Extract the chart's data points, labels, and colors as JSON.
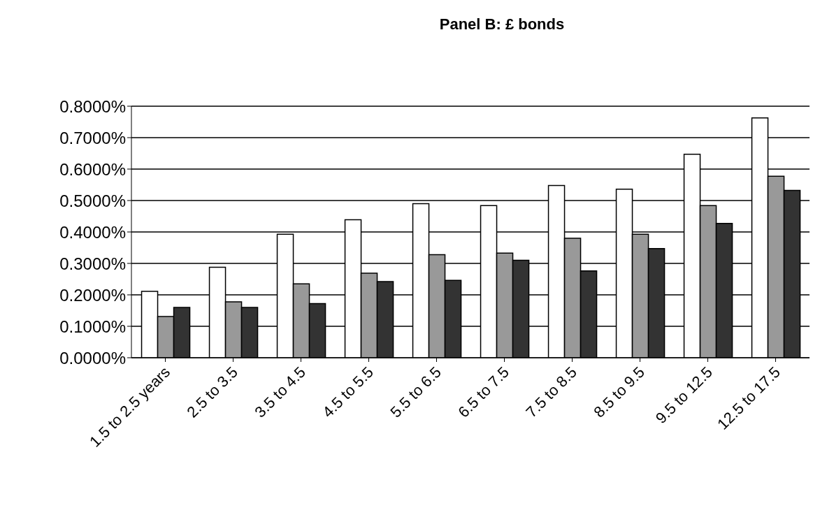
{
  "chart_data": {
    "type": "bar",
    "title": "Panel B: £ bonds",
    "categories": [
      "1.5 to 2.5 years",
      "2.5 to 3.5",
      "3.5 to 4.5",
      "4.5 to 5.5",
      "5.5 to 6.5",
      "6.5 to 7.5",
      "7.5 to 8.5",
      "8.5 to 9.5",
      "9.5 to 12.5",
      "12.5 to 17.5"
    ],
    "series": [
      {
        "color": "#ffffff",
        "values": [
          0.211,
          0.288,
          0.393,
          0.439,
          0.49,
          0.484,
          0.548,
          0.536,
          0.647,
          0.763
        ]
      },
      {
        "color": "#999999",
        "values": [
          0.131,
          0.178,
          0.235,
          0.269,
          0.328,
          0.333,
          0.38,
          0.393,
          0.484,
          0.577
        ]
      },
      {
        "color": "#333333",
        "values": [
          0.16,
          0.16,
          0.172,
          0.242,
          0.246,
          0.31,
          0.276,
          0.347,
          0.427,
          0.532
        ]
      }
    ],
    "ylim": [
      0,
      0.8
    ],
    "yticks": [
      {
        "value": 0,
        "label": "0.0000%"
      },
      {
        "value": 0.1,
        "label": "0.1000%"
      },
      {
        "value": 0.2,
        "label": "0.2000%"
      },
      {
        "value": 0.3,
        "label": "0.3000%"
      },
      {
        "value": 0.4,
        "label": "0.4000%"
      },
      {
        "value": 0.5,
        "label": "0.5000%"
      },
      {
        "value": 0.6,
        "label": "0.6000%"
      },
      {
        "value": 0.7,
        "label": "0.7000%"
      },
      {
        "value": 0.8,
        "label": "0.8000%"
      }
    ],
    "grid": "y",
    "legend": false
  }
}
